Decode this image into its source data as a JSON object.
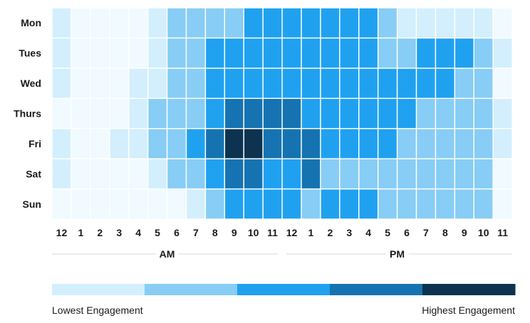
{
  "chart_data": {
    "type": "heatmap",
    "rows": [
      "Mon",
      "Tues",
      "Wed",
      "Thurs",
      "Fri",
      "Sat",
      "Sun"
    ],
    "columns": [
      "12",
      "1",
      "2",
      "3",
      "4",
      "5",
      "6",
      "7",
      "8",
      "9",
      "10",
      "11",
      "12",
      "1",
      "2",
      "3",
      "4",
      "5",
      "6",
      "7",
      "8",
      "9",
      "10",
      "11"
    ],
    "periods": [
      {
        "label": "AM",
        "start": 0,
        "end": 11
      },
      {
        "label": "PM",
        "start": 12,
        "end": 23
      }
    ],
    "values": [
      [
        1,
        0,
        0,
        0,
        0,
        1,
        2,
        2,
        2,
        2,
        3,
        3,
        3,
        3,
        3,
        3,
        3,
        2,
        1,
        1,
        1,
        1,
        1,
        0
      ],
      [
        1,
        0,
        0,
        0,
        0,
        1,
        2,
        2,
        3,
        3,
        3,
        3,
        3,
        3,
        3,
        3,
        3,
        2,
        2,
        3,
        3,
        3,
        2,
        1
      ],
      [
        1,
        0,
        0,
        0,
        1,
        1,
        2,
        2,
        3,
        3,
        3,
        3,
        3,
        3,
        3,
        3,
        3,
        3,
        3,
        3,
        3,
        2,
        2,
        0
      ],
      [
        0,
        0,
        0,
        0,
        1,
        2,
        2,
        2,
        3,
        4,
        4,
        4,
        4,
        3,
        3,
        3,
        3,
        3,
        3,
        2,
        2,
        2,
        2,
        1
      ],
      [
        1,
        0,
        0,
        1,
        1,
        2,
        2,
        3,
        4,
        5,
        5,
        4,
        4,
        4,
        3,
        3,
        3,
        3,
        2,
        2,
        2,
        2,
        2,
        1
      ],
      [
        1,
        0,
        0,
        0,
        0,
        1,
        2,
        2,
        3,
        4,
        4,
        3,
        3,
        4,
        2,
        2,
        2,
        2,
        2,
        2,
        2,
        2,
        2,
        0
      ],
      [
        0,
        0,
        0,
        0,
        0,
        0,
        0,
        1,
        2,
        3,
        3,
        3,
        3,
        2,
        3,
        3,
        3,
        2,
        2,
        2,
        2,
        2,
        2,
        0
      ]
    ],
    "colors": [
      "#f0faff",
      "#d3effd",
      "#87cdf5",
      "#20a1f0",
      "#1673b1",
      "#0d3350"
    ],
    "legend": {
      "colors": [
        "#d3effd",
        "#87cdf5",
        "#20a1f0",
        "#1673b1",
        "#0d3350"
      ],
      "low_label": "Lowest Engagement",
      "high_label": "Highest Engagement"
    }
  }
}
